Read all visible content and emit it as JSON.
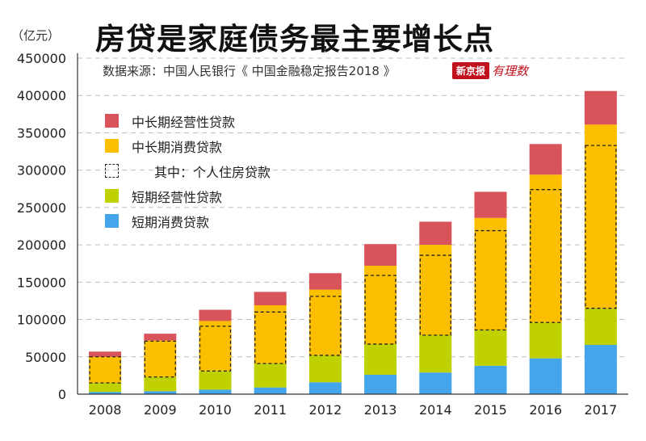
{
  "unit_label": "（亿元）",
  "title": "房贷是家庭债务最主要增长点",
  "source": "数据来源：中国人民银行《 中国金融稳定报告2018 》",
  "logo": {
    "main": "新京报",
    "sub": "有理数"
  },
  "colors": {
    "long_business": "#d9535a",
    "long_consumer": "#fbbf00",
    "short_business": "#bfd200",
    "short_consumer": "#45a5ea",
    "housing_outline": "#222222",
    "grid": "#bdbdbd"
  },
  "chart_data": {
    "type": "bar",
    "stacked": true,
    "categories": [
      "2008",
      "2009",
      "2010",
      "2011",
      "2012",
      "2013",
      "2014",
      "2015",
      "2016",
      "2017"
    ],
    "yticks": [
      "0",
      "50000",
      "100000",
      "150000",
      "200000",
      "250000",
      "300000",
      "350000",
      "400000",
      "450000"
    ],
    "ylim": [
      0,
      450000
    ],
    "grid": true,
    "legend_position": "top-left",
    "series": [
      {
        "name": "短期消费贷款",
        "key": "short_consumer",
        "values": [
          3000,
          4000,
          6000,
          9000,
          16000,
          26000,
          29000,
          38000,
          48000,
          66000
        ]
      },
      {
        "name": "短期经营性贷款",
        "key": "short_business",
        "values": [
          12000,
          19000,
          25000,
          32000,
          36000,
          41000,
          50000,
          48000,
          48000,
          49000
        ]
      },
      {
        "name": "中长期消费贷款",
        "key": "long_consumer",
        "values": [
          35000,
          49000,
          67000,
          78000,
          88000,
          105000,
          121000,
          150000,
          198000,
          246000
        ]
      },
      {
        "name": "中长期经营性贷款",
        "key": "long_business",
        "values": [
          7000,
          9000,
          15000,
          18000,
          22000,
          29000,
          31000,
          35000,
          41000,
          45000
        ]
      }
    ],
    "housing_loans": {
      "name": "其中：个人住房贷款",
      "bottom": [
        15000,
        23000,
        31000,
        41000,
        52000,
        67000,
        79000,
        86000,
        96000,
        115000
      ],
      "top": [
        50000,
        71000,
        91000,
        110000,
        131000,
        159000,
        186000,
        219000,
        274000,
        333000
      ]
    }
  },
  "legend": [
    {
      "label": "中长期经营性贷款",
      "key": "long_business",
      "style": "fill"
    },
    {
      "label": "中长期消费贷款",
      "key": "long_consumer",
      "style": "fill"
    },
    {
      "label": "其中：个人住房贷款",
      "key": "housing_outline",
      "style": "dashed"
    },
    {
      "label": "短期经营性贷款",
      "key": "short_business",
      "style": "fill"
    },
    {
      "label": "短期消费贷款",
      "key": "short_consumer",
      "style": "fill"
    }
  ]
}
